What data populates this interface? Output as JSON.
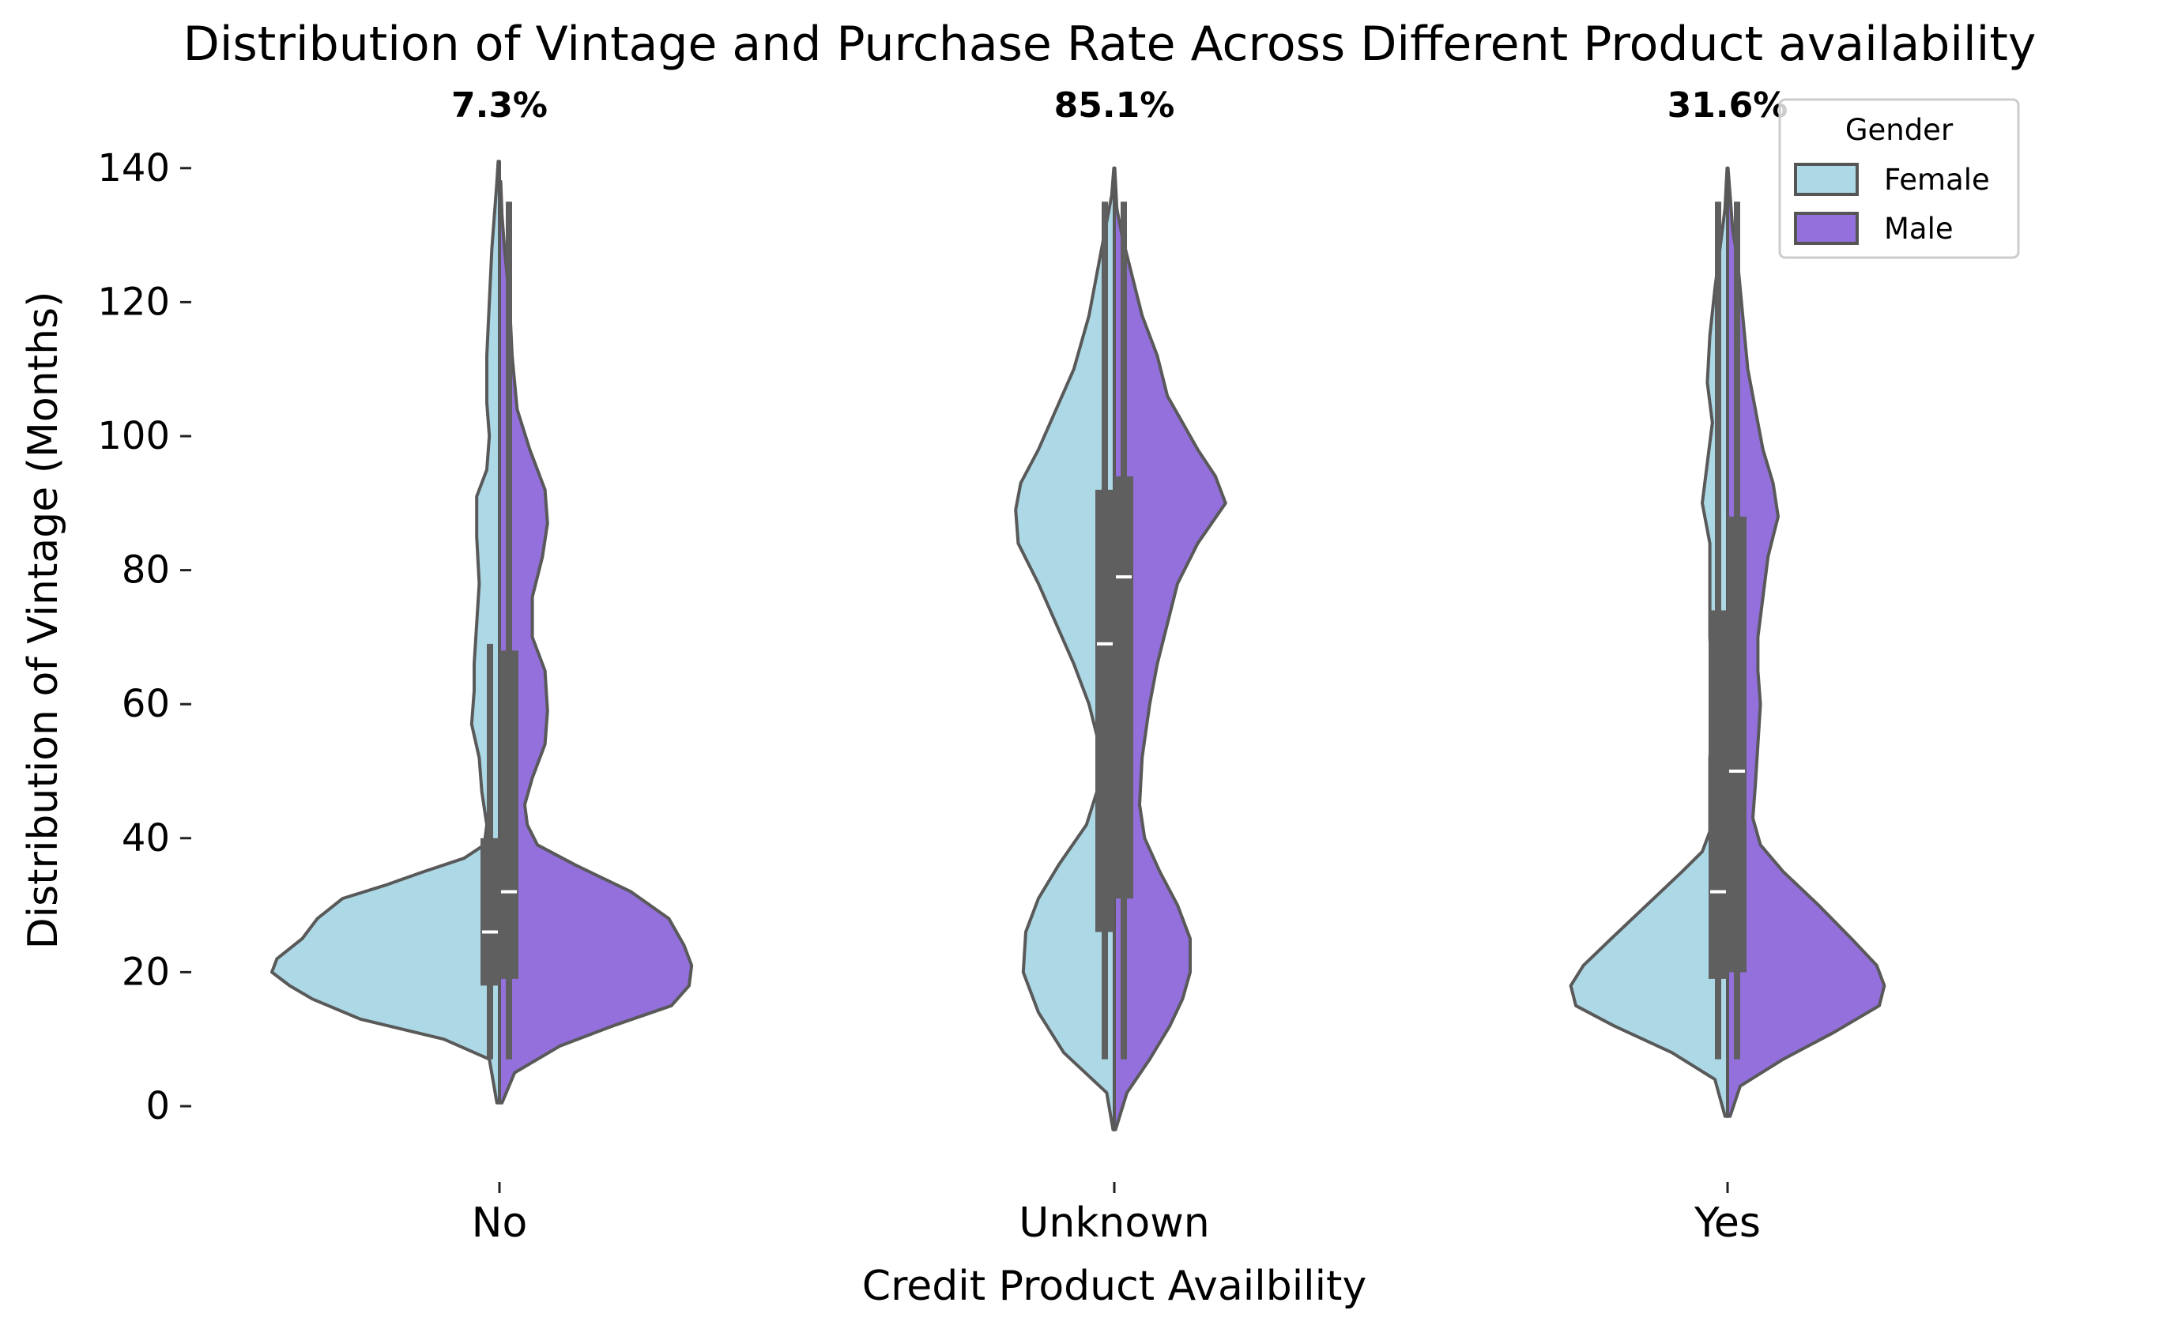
{
  "chart_data": {
    "type": "violin",
    "title": "Distribution of Vintage and Purchase Rate Across Different Product availability",
    "xlabel": "Credit Product Availbility",
    "ylabel": "Distribution of Vintage (Months)",
    "categories": [
      "No",
      "Unknown",
      "Yes"
    ],
    "ylim": [
      -10,
      145
    ],
    "yticks": [
      0,
      20,
      40,
      60,
      80,
      100,
      120,
      140
    ],
    "grid": false,
    "annotations": [
      "7.3%",
      "85.1%",
      "31.6%"
    ],
    "legend": {
      "title": "Gender",
      "position": "top-right",
      "entries": [
        {
          "label": "Female",
          "color": "#add8e6"
        },
        {
          "label": "Male",
          "color": "#9370db"
        }
      ]
    },
    "series": [
      {
        "name": "Female",
        "color": "#add8e6",
        "groups": [
          {
            "category": "No",
            "quartiles": {
              "q1": 18,
              "median": 26,
              "q3": 40
            },
            "whiskers": [
              7,
              69
            ],
            "density": [
              [
                0.5,
                0.01
              ],
              [
                7,
                0.04
              ],
              [
                10,
                0.22
              ],
              [
                13,
                0.55
              ],
              [
                16,
                0.74
              ],
              [
                18,
                0.83
              ],
              [
                20,
                0.9
              ],
              [
                22,
                0.88
              ],
              [
                25,
                0.78
              ],
              [
                28,
                0.72
              ],
              [
                31,
                0.62
              ],
              [
                33,
                0.45
              ],
              [
                35,
                0.3
              ],
              [
                37,
                0.14
              ],
              [
                39,
                0.06
              ],
              [
                42,
                0.05
              ],
              [
                47,
                0.07
              ],
              [
                52,
                0.08
              ],
              [
                57,
                0.11
              ],
              [
                62,
                0.1
              ],
              [
                66,
                0.1
              ],
              [
                72,
                0.09
              ],
              [
                78,
                0.08
              ],
              [
                85,
                0.09
              ],
              [
                91,
                0.09
              ],
              [
                95,
                0.05
              ],
              [
                100,
                0.04
              ],
              [
                105,
                0.05
              ],
              [
                112,
                0.05
              ],
              [
                120,
                0.04
              ],
              [
                128,
                0.03
              ],
              [
                133,
                0.02
              ],
              [
                138,
                0.01
              ],
              [
                141,
                0.005
              ]
            ]
          },
          {
            "category": "Unknown",
            "quartiles": {
              "q1": 26,
              "median": 69,
              "q3": 92
            },
            "whiskers": [
              7,
              135
            ],
            "density": [
              [
                -3.5,
                0.005
              ],
              [
                2,
                0.03
              ],
              [
                8,
                0.2
              ],
              [
                14,
                0.3
              ],
              [
                20,
                0.36
              ],
              [
                26,
                0.35
              ],
              [
                31,
                0.3
              ],
              [
                36,
                0.22
              ],
              [
                42,
                0.11
              ],
              [
                48,
                0.06
              ],
              [
                54,
                0.06
              ],
              [
                60,
                0.1
              ],
              [
                66,
                0.16
              ],
              [
                72,
                0.23
              ],
              [
                78,
                0.3
              ],
              [
                84,
                0.38
              ],
              [
                89,
                0.39
              ],
              [
                93,
                0.37
              ],
              [
                98,
                0.3
              ],
              [
                104,
                0.23
              ],
              [
                110,
                0.16
              ],
              [
                118,
                0.1
              ],
              [
                126,
                0.06
              ],
              [
                132,
                0.03
              ],
              [
                136,
                0.01
              ],
              [
                140,
                0.002
              ]
            ]
          },
          {
            "category": "Yes",
            "quartiles": {
              "q1": 19,
              "median": 32,
              "q3": 74
            },
            "whiskers": [
              7,
              135
            ],
            "density": [
              [
                -1.5,
                0.01
              ],
              [
                4,
                0.05
              ],
              [
                8,
                0.22
              ],
              [
                12,
                0.45
              ],
              [
                15,
                0.6
              ],
              [
                18,
                0.62
              ],
              [
                21,
                0.57
              ],
              [
                25,
                0.46
              ],
              [
                30,
                0.32
              ],
              [
                35,
                0.18
              ],
              [
                38,
                0.1
              ],
              [
                41,
                0.07
              ],
              [
                46,
                0.07
              ],
              [
                52,
                0.07
              ],
              [
                57,
                0.06
              ],
              [
                63,
                0.06
              ],
              [
                70,
                0.07
              ],
              [
                78,
                0.07
              ],
              [
                84,
                0.07
              ],
              [
                90,
                0.1
              ],
              [
                96,
                0.08
              ],
              [
                102,
                0.06
              ],
              [
                108,
                0.08
              ],
              [
                115,
                0.07
              ],
              [
                122,
                0.05
              ],
              [
                128,
                0.03
              ],
              [
                134,
                0.01
              ],
              [
                140,
                0.002
              ]
            ]
          }
        ]
      },
      {
        "name": "Male",
        "color": "#9370db",
        "groups": [
          {
            "category": "No",
            "quartiles": {
              "q1": 19,
              "median": 32,
              "q3": 68
            },
            "whiskers": [
              7,
              135
            ],
            "density": [
              [
                0.5,
                0.01
              ],
              [
                5,
                0.06
              ],
              [
                9,
                0.24
              ],
              [
                12,
                0.45
              ],
              [
                15,
                0.68
              ],
              [
                18,
                0.75
              ],
              [
                21,
                0.76
              ],
              [
                24,
                0.73
              ],
              [
                28,
                0.67
              ],
              [
                32,
                0.52
              ],
              [
                36,
                0.3
              ],
              [
                39,
                0.15
              ],
              [
                42,
                0.11
              ],
              [
                45,
                0.1
              ],
              [
                49,
                0.13
              ],
              [
                54,
                0.18
              ],
              [
                59,
                0.19
              ],
              [
                65,
                0.18
              ],
              [
                70,
                0.13
              ],
              [
                76,
                0.13
              ],
              [
                82,
                0.17
              ],
              [
                87,
                0.19
              ],
              [
                92,
                0.18
              ],
              [
                98,
                0.12
              ],
              [
                104,
                0.07
              ],
              [
                112,
                0.05
              ],
              [
                120,
                0.04
              ],
              [
                128,
                0.02
              ],
              [
                133,
                0.01
              ],
              [
                138,
                0.005
              ]
            ]
          },
          {
            "category": "Unknown",
            "quartiles": {
              "q1": 31,
              "median": 79,
              "q3": 94
            },
            "whiskers": [
              7,
              135
            ],
            "density": [
              [
                -3.5,
                0.005
              ],
              [
                2,
                0.05
              ],
              [
                7,
                0.14
              ],
              [
                12,
                0.22
              ],
              [
                16,
                0.27
              ],
              [
                20,
                0.3
              ],
              [
                25,
                0.3
              ],
              [
                30,
                0.25
              ],
              [
                35,
                0.18
              ],
              [
                40,
                0.12
              ],
              [
                45,
                0.1
              ],
              [
                52,
                0.11
              ],
              [
                60,
                0.14
              ],
              [
                66,
                0.17
              ],
              [
                72,
                0.21
              ],
              [
                78,
                0.25
              ],
              [
                84,
                0.33
              ],
              [
                90,
                0.44
              ],
              [
                94,
                0.4
              ],
              [
                98,
                0.33
              ],
              [
                102,
                0.27
              ],
              [
                106,
                0.21
              ],
              [
                112,
                0.17
              ],
              [
                118,
                0.11
              ],
              [
                124,
                0.07
              ],
              [
                130,
                0.03
              ],
              [
                134,
                0.01
              ],
              [
                140,
                0.002
              ]
            ]
          },
          {
            "category": "Yes",
            "quartiles": {
              "q1": 20,
              "median": 50,
              "q3": 88
            },
            "whiskers": [
              7,
              135
            ],
            "density": [
              [
                -1.5,
                0.01
              ],
              [
                3,
                0.05
              ],
              [
                7,
                0.22
              ],
              [
                11,
                0.42
              ],
              [
                15,
                0.6
              ],
              [
                18,
                0.62
              ],
              [
                21,
                0.59
              ],
              [
                25,
                0.49
              ],
              [
                30,
                0.36
              ],
              [
                35,
                0.22
              ],
              [
                39,
                0.13
              ],
              [
                43,
                0.1
              ],
              [
                48,
                0.11
              ],
              [
                54,
                0.12
              ],
              [
                60,
                0.13
              ],
              [
                65,
                0.12
              ],
              [
                70,
                0.12
              ],
              [
                76,
                0.14
              ],
              [
                82,
                0.16
              ],
              [
                88,
                0.2
              ],
              [
                93,
                0.18
              ],
              [
                98,
                0.14
              ],
              [
                104,
                0.11
              ],
              [
                110,
                0.08
              ],
              [
                118,
                0.06
              ],
              [
                126,
                0.04
              ],
              [
                131,
                0.02
              ],
              [
                136,
                0.01
              ],
              [
                140,
                0.002
              ]
            ]
          }
        ]
      }
    ]
  }
}
